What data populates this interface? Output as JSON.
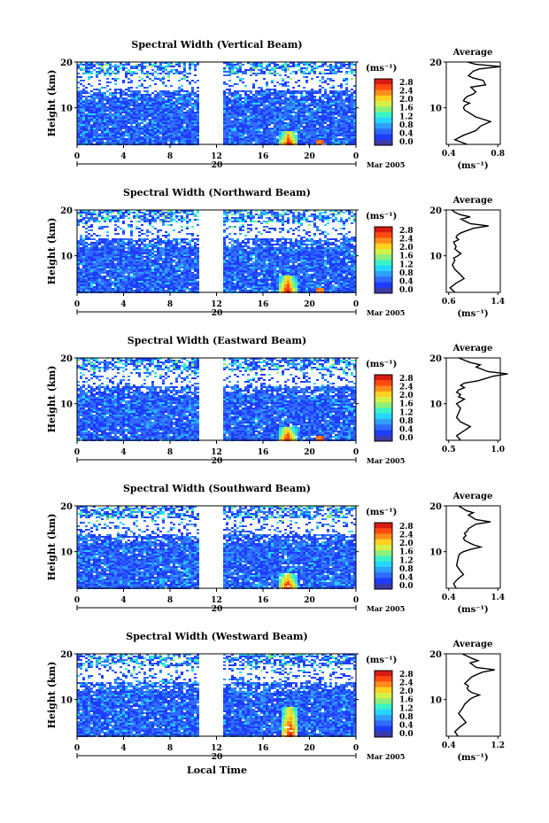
{
  "chart_data": [
    {
      "type": "heatmap",
      "title": "Spectral Width (Vertical Beam)",
      "ylabel": "Height (km)",
      "y_ticks": [
        "10",
        "20"
      ],
      "x_ticks": [
        "0",
        "4",
        "8",
        "12",
        "16",
        "20",
        "0"
      ],
      "date_day": "20",
      "date_suffix": "Mar 2005",
      "colorbar": {
        "unit": "(ms⁻¹)",
        "labels": [
          "2.8",
          "2.4",
          "2.0",
          "1.6",
          "1.2",
          "0.8",
          "0.4",
          "0.0"
        ]
      },
      "average": {
        "title": "Average",
        "xlabel": "(ms⁻¹)",
        "x_ticks": [
          "0.4",
          "0.8"
        ],
        "y_ticks": [
          "10",
          "20"
        ],
        "x": [
          0.55,
          0.45,
          0.52,
          0.62,
          0.66,
          0.74,
          0.62,
          0.56,
          0.53,
          0.52,
          0.53,
          0.57,
          0.52,
          0.53,
          0.55,
          0.6,
          0.62,
          0.6,
          0.58,
          0.7,
          0.68,
          0.6,
          0.56,
          0.6,
          0.65,
          0.82,
          0.62,
          0.55
        ],
        "y": [
          2,
          3,
          4,
          5,
          6,
          7,
          8,
          9,
          9.5,
          10,
          10.5,
          11,
          11.5,
          12,
          12.5,
          13,
          13.5,
          14,
          14.5,
          15,
          16,
          16.5,
          17,
          18,
          18.5,
          19,
          19.5,
          20
        ]
      }
    },
    {
      "type": "heatmap",
      "title": "Spectral Width (Northward Beam)",
      "ylabel": "Height (km)",
      "y_ticks": [
        "10",
        "20"
      ],
      "x_ticks": [
        "0",
        "4",
        "8",
        "12",
        "16",
        "20",
        "0"
      ],
      "date_day": "20",
      "date_suffix": "Mar 2005",
      "colorbar": {
        "unit": "(ms⁻¹)",
        "labels": [
          "2.8",
          "2.4",
          "2.0",
          "1.6",
          "1.2",
          "0.8",
          "0.4",
          "0.0"
        ]
      },
      "average": {
        "title": "Average",
        "xlabel": "(ms⁻¹)",
        "x_ticks": [
          "0.6",
          "1.4"
        ],
        "y_ticks": [
          "10",
          "20"
        ],
        "x": [
          0.7,
          0.62,
          0.72,
          0.85,
          0.78,
          0.7,
          0.66,
          0.7,
          0.68,
          0.75,
          0.8,
          0.74,
          0.7,
          0.72,
          0.7,
          0.68,
          0.76,
          0.72,
          0.74,
          0.8,
          1.0,
          1.25,
          0.95,
          0.8,
          0.95,
          0.78,
          0.7,
          0.65
        ],
        "y": [
          2,
          3,
          4,
          5,
          6,
          7,
          8,
          9,
          9.5,
          10,
          10.5,
          11,
          11.5,
          12,
          12.5,
          13,
          13.5,
          14,
          14.5,
          15,
          16,
          16.5,
          17,
          18,
          18.5,
          19,
          19.5,
          20
        ]
      }
    },
    {
      "type": "heatmap",
      "title": "Spectral Width (Eastward Beam)",
      "ylabel": "Height (km)",
      "y_ticks": [
        "10",
        "20"
      ],
      "x_ticks": [
        "0",
        "4",
        "8",
        "12",
        "16",
        "20",
        "0"
      ],
      "date_day": "20",
      "date_suffix": "Mar 2005",
      "colorbar": {
        "unit": "(ms⁻¹)",
        "labels": [
          "2.8",
          "2.4",
          "2.0",
          "1.6",
          "1.2",
          "0.8",
          "0.4",
          "0.0"
        ]
      },
      "average": {
        "title": "Average",
        "xlabel": "",
        "x_ticks": [
          "0.5",
          "1.0"
        ],
        "y_ticks": [
          "10",
          "20"
        ],
        "x": [
          0.62,
          0.58,
          0.65,
          0.72,
          0.62,
          0.58,
          0.6,
          0.62,
          0.6,
          0.58,
          0.62,
          0.66,
          0.6,
          0.62,
          0.58,
          0.6,
          0.66,
          0.62,
          0.66,
          0.8,
          0.95,
          1.1,
          0.9,
          0.78,
          0.82,
          0.72,
          0.66,
          0.6
        ],
        "y": [
          2,
          3,
          4,
          5,
          6,
          7,
          8,
          9,
          9.5,
          10,
          10.5,
          11,
          11.5,
          12,
          12.5,
          13,
          13.5,
          14,
          14.5,
          15,
          16,
          16.5,
          17,
          18,
          18.5,
          19,
          19.5,
          20
        ]
      }
    },
    {
      "type": "heatmap",
      "title": "Spectral Width (Southward Beam)",
      "ylabel": "Height (km)",
      "y_ticks": [
        "10",
        "20"
      ],
      "x_ticks": [
        "0",
        "4",
        "8",
        "12",
        "16",
        "20",
        "0"
      ],
      "date_day": "20",
      "date_suffix": "Mar 2005",
      "colorbar": {
        "unit": "(ms⁻¹)",
        "labels": [
          "2.8",
          "2.4",
          "2.0",
          "1.6",
          "1.2",
          "0.8",
          "0.4",
          "0.0"
        ]
      },
      "average": {
        "title": "Average",
        "xlabel": "(ms⁻¹)",
        "x_ticks": [
          "0.4",
          "1.4"
        ],
        "y_ticks": [
          "10",
          "20"
        ],
        "x": [
          0.55,
          0.5,
          0.58,
          0.7,
          0.62,
          0.56,
          0.58,
          0.6,
          0.62,
          0.7,
          0.85,
          1.05,
          0.9,
          0.8,
          0.72,
          0.7,
          0.75,
          0.72,
          0.78,
          0.8,
          0.95,
          1.25,
          0.95,
          0.8,
          0.9,
          0.75,
          0.68,
          0.6
        ],
        "y": [
          2,
          3,
          4,
          5,
          6,
          7,
          8,
          9,
          9.5,
          10,
          10.5,
          11,
          11.5,
          12,
          12.5,
          13,
          13.5,
          14,
          14.5,
          15,
          16,
          16.5,
          17,
          18,
          18.5,
          19,
          19.5,
          20
        ]
      }
    },
    {
      "type": "heatmap",
      "title": "Spectral Width (Westward Beam)",
      "ylabel": "Height (km)",
      "y_ticks": [
        "10",
        "20"
      ],
      "x_ticks": [
        "0",
        "4",
        "8",
        "12",
        "16",
        "20",
        "0"
      ],
      "date_day": "20",
      "date_suffix": "Mar 2005",
      "xlabel": "Local Time",
      "colorbar": {
        "unit": "(ms⁻¹)",
        "labels": [
          "2.8",
          "2.4",
          "2.0",
          "1.6",
          "1.2",
          "0.8",
          "0.4",
          "0.0"
        ]
      },
      "average": {
        "title": "Average",
        "xlabel": "(ms⁻¹)",
        "x_ticks": [
          "0.4",
          "1.2"
        ],
        "y_ticks": [
          "10",
          "20"
        ],
        "x": [
          0.55,
          0.5,
          0.58,
          0.68,
          0.62,
          0.56,
          0.62,
          0.66,
          0.7,
          0.74,
          0.8,
          0.9,
          0.78,
          0.72,
          0.7,
          0.72,
          0.66,
          0.7,
          0.74,
          0.78,
          0.95,
          1.15,
          0.85,
          0.75,
          0.88,
          0.78,
          0.7,
          0.62
        ],
        "y": [
          2,
          3,
          4,
          5,
          6,
          7,
          8,
          9,
          9.5,
          10,
          10.5,
          11,
          11.5,
          12,
          12.5,
          13,
          13.5,
          14,
          14.5,
          15,
          16,
          16.5,
          17,
          18,
          18.5,
          19,
          19.5,
          20
        ]
      }
    }
  ]
}
